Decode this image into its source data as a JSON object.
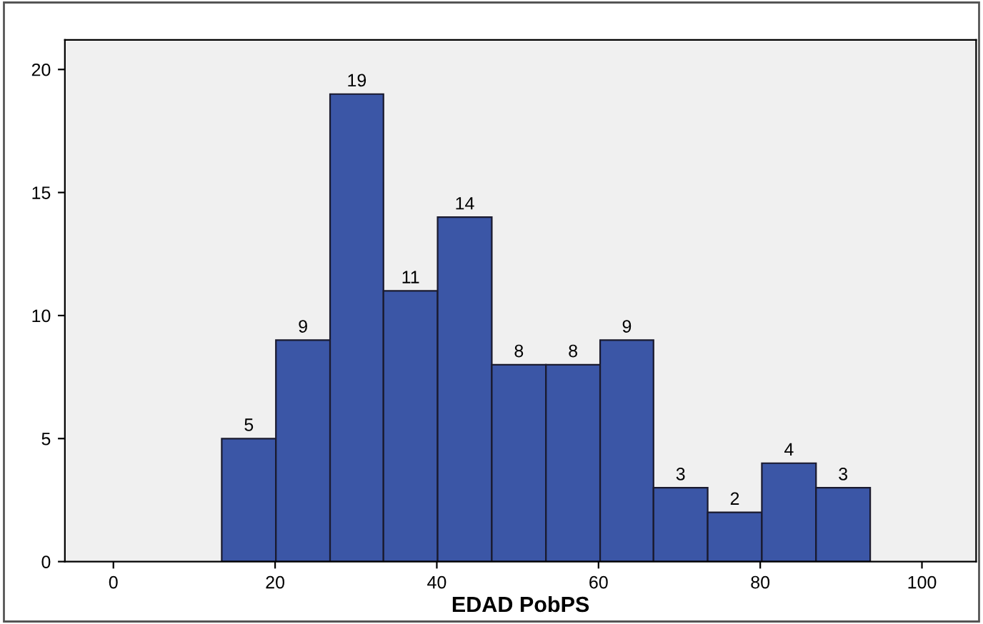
{
  "chart_data": {
    "type": "histogram",
    "xlabel": "EDAD PobPS",
    "bins": [
      13.4,
      20.1,
      26.8,
      33.4,
      40.1,
      46.8,
      53.5,
      60.2,
      66.8,
      73.5,
      80.2,
      86.9,
      93.6
    ],
    "values": [
      5,
      9,
      19,
      11,
      14,
      8,
      8,
      9,
      3,
      2,
      4,
      3
    ],
    "color": "#3b56a6",
    "data_labels": true,
    "xlim": [
      -6,
      106.7
    ],
    "ylim": [
      0,
      21.2
    ],
    "xticks": [
      0,
      20,
      40,
      60,
      80,
      100
    ],
    "yticks": [
      0,
      5,
      10,
      15,
      20
    ],
    "grid": false
  }
}
